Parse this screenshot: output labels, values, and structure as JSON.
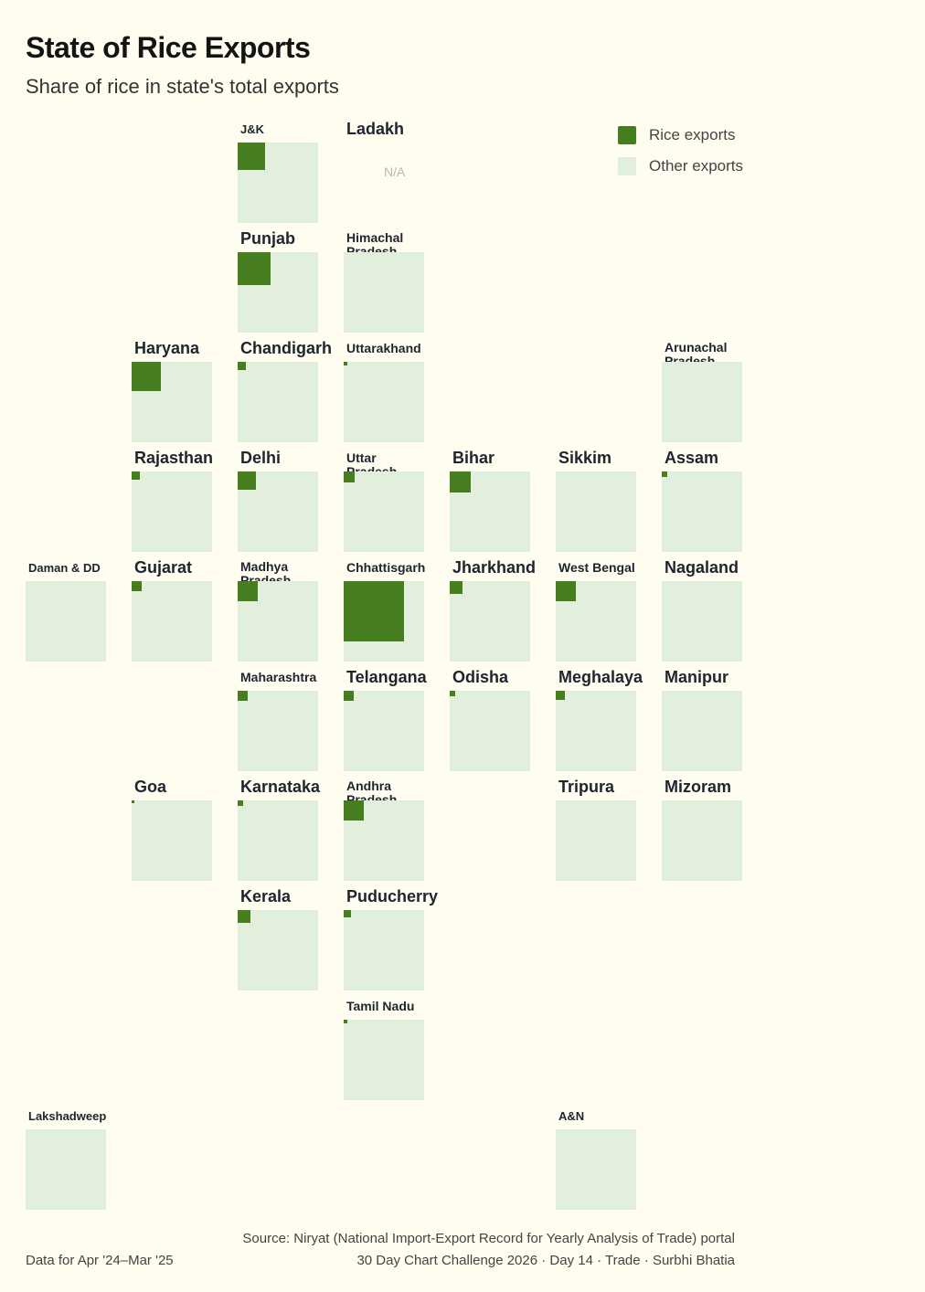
{
  "title": "State of Rice Exports",
  "subtitle": "Share of rice in state's total exports",
  "legend": {
    "rice": {
      "label": "Rice exports",
      "color": "#467d1f"
    },
    "other": {
      "label": "Other exports",
      "color": "#e3efdd"
    }
  },
  "footer": {
    "left": "Data for Apr '24–Mar '25",
    "source": "Source: Niryat (National Import-Export Record for Yearly Analysis of Trade) portal",
    "credit": "30 Day Chart Challenge 2026 · Day 14 · Trade · Surbhi Bhatia"
  },
  "chart_data": {
    "type": "tile-grid-map",
    "na_label": "N/A",
    "tiles": [
      {
        "name": "J&K",
        "row": 0,
        "col": 2,
        "share": 0.12
      },
      {
        "name": "Ladakh",
        "row": 0,
        "col": 3,
        "share": null
      },
      {
        "name": "Punjab",
        "row": 1,
        "col": 2,
        "share": 0.17
      },
      {
        "name": "Himachal Pradesh",
        "row": 1,
        "col": 3,
        "share": 0.0
      },
      {
        "name": "Haryana",
        "row": 2,
        "col": 1,
        "share": 0.13
      },
      {
        "name": "Chandigarh",
        "row": 2,
        "col": 2,
        "share": 0.01
      },
      {
        "name": "Uttarakhand",
        "row": 2,
        "col": 3,
        "share": 0.002
      },
      {
        "name": "Arunachal Pradesh",
        "row": 2,
        "col": 6,
        "share": 0.0
      },
      {
        "name": "Rajasthan",
        "row": 3,
        "col": 1,
        "share": 0.01
      },
      {
        "name": "Delhi",
        "row": 3,
        "col": 2,
        "share": 0.05
      },
      {
        "name": "Uttar Pradesh",
        "row": 3,
        "col": 3,
        "share": 0.02
      },
      {
        "name": "Bihar",
        "row": 3,
        "col": 4,
        "share": 0.07
      },
      {
        "name": "Sikkim",
        "row": 3,
        "col": 5,
        "share": 0.0
      },
      {
        "name": "Assam",
        "row": 3,
        "col": 6,
        "share": 0.005
      },
      {
        "name": "Daman & DD",
        "row": 4,
        "col": 0,
        "share": 0.0
      },
      {
        "name": "Gujarat",
        "row": 4,
        "col": 1,
        "share": 0.015
      },
      {
        "name": "Madhya Pradesh",
        "row": 4,
        "col": 2,
        "share": 0.06
      },
      {
        "name": "Chhattisgarh",
        "row": 4,
        "col": 3,
        "share": 0.56
      },
      {
        "name": "Jharkhand",
        "row": 4,
        "col": 4,
        "share": 0.025
      },
      {
        "name": "West Bengal",
        "row": 4,
        "col": 5,
        "share": 0.06
      },
      {
        "name": "Nagaland",
        "row": 4,
        "col": 6,
        "share": 0.0
      },
      {
        "name": "Maharashtra",
        "row": 5,
        "col": 2,
        "share": 0.015
      },
      {
        "name": "Telangana",
        "row": 5,
        "col": 3,
        "share": 0.015
      },
      {
        "name": "Odisha",
        "row": 5,
        "col": 4,
        "share": 0.004
      },
      {
        "name": "Meghalaya",
        "row": 5,
        "col": 5,
        "share": 0.012
      },
      {
        "name": "Manipur",
        "row": 5,
        "col": 6,
        "share": 0.0
      },
      {
        "name": "Goa",
        "row": 6,
        "col": 1,
        "share": 0.001
      },
      {
        "name": "Karnataka",
        "row": 6,
        "col": 2,
        "share": 0.004
      },
      {
        "name": "Andhra Pradesh",
        "row": 6,
        "col": 3,
        "share": 0.06
      },
      {
        "name": "Tripura",
        "row": 6,
        "col": 5,
        "share": 0.0
      },
      {
        "name": "Mizoram",
        "row": 6,
        "col": 6,
        "share": 0.0
      },
      {
        "name": "Kerala",
        "row": 7,
        "col": 2,
        "share": 0.025
      },
      {
        "name": "Puducherry",
        "row": 7,
        "col": 3,
        "share": 0.008
      },
      {
        "name": "Tamil Nadu",
        "row": 8,
        "col": 3,
        "share": 0.002
      },
      {
        "name": "Lakshadweep",
        "row": 9,
        "col": 0,
        "share": 0.0
      },
      {
        "name": "A&N",
        "row": 9,
        "col": 5,
        "share": 0.0
      }
    ]
  }
}
